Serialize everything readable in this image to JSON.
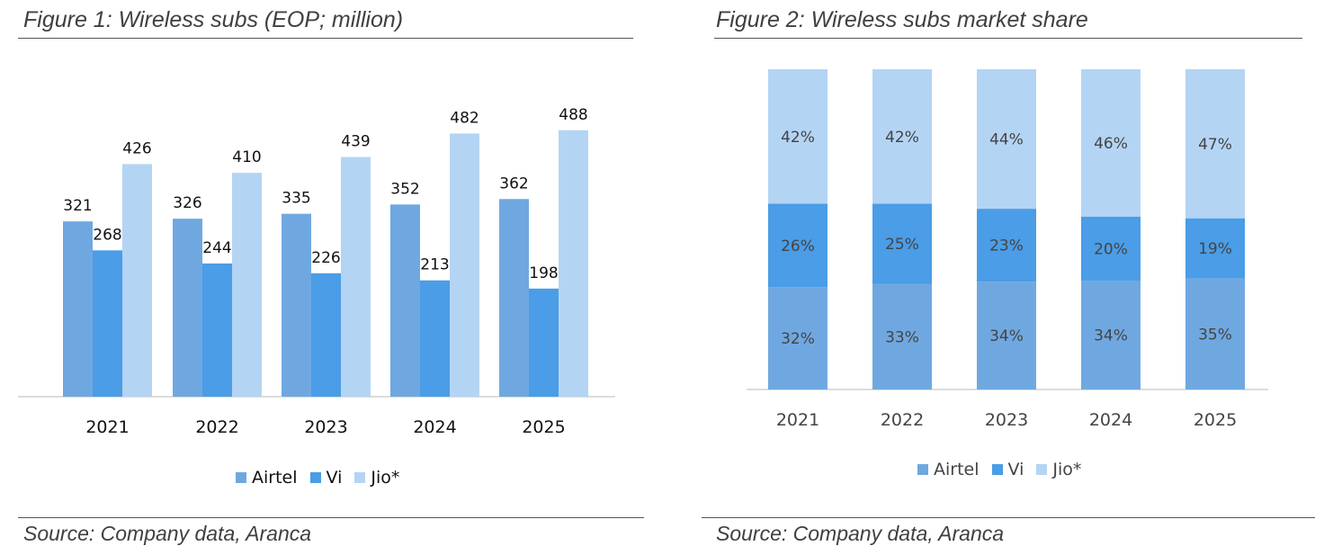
{
  "colors": {
    "airtel": "#6fa8e0",
    "vi": "#4a9de6",
    "jio": "#b4d4f4",
    "axis": "#d0d0d0"
  },
  "figure1": {
    "title": "Figure 1: Wireless subs (EOP; million)",
    "source": "Source: Company data, Aranca",
    "chart_data": {
      "type": "bar",
      "categories": [
        "2021",
        "2022",
        "2023",
        "2024",
        "2025"
      ],
      "series": [
        {
          "name": "Airtel",
          "values": [
            321,
            326,
            335,
            352,
            362
          ]
        },
        {
          "name": "Vi",
          "values": [
            268,
            244,
            226,
            213,
            198
          ]
        },
        {
          "name": "Jio*",
          "values": [
            426,
            410,
            439,
            482,
            488
          ]
        }
      ],
      "legend_position": "bottom",
      "grid": false
    }
  },
  "figure2": {
    "title": "Figure 2: Wireless subs market share",
    "source": "Source: Company data, Aranca",
    "chart_data": {
      "type": "bar",
      "stacked": true,
      "categories": [
        "2021",
        "2022",
        "2023",
        "2024",
        "2025"
      ],
      "series": [
        {
          "name": "Airtel",
          "values": [
            32,
            33,
            34,
            34,
            35
          ],
          "labels": [
            "32%",
            "33%",
            "34%",
            "34%",
            "35%"
          ]
        },
        {
          "name": "Vi",
          "values": [
            26,
            25,
            23,
            20,
            19
          ],
          "labels": [
            "26%",
            "25%",
            "23%",
            "20%",
            "19%"
          ]
        },
        {
          "name": "Jio*",
          "values": [
            42,
            42,
            44,
            46,
            47
          ],
          "labels": [
            "42%",
            "42%",
            "44%",
            "46%",
            "47%"
          ]
        }
      ],
      "ylim": [
        0,
        100
      ],
      "legend_position": "bottom",
      "grid": false
    }
  }
}
